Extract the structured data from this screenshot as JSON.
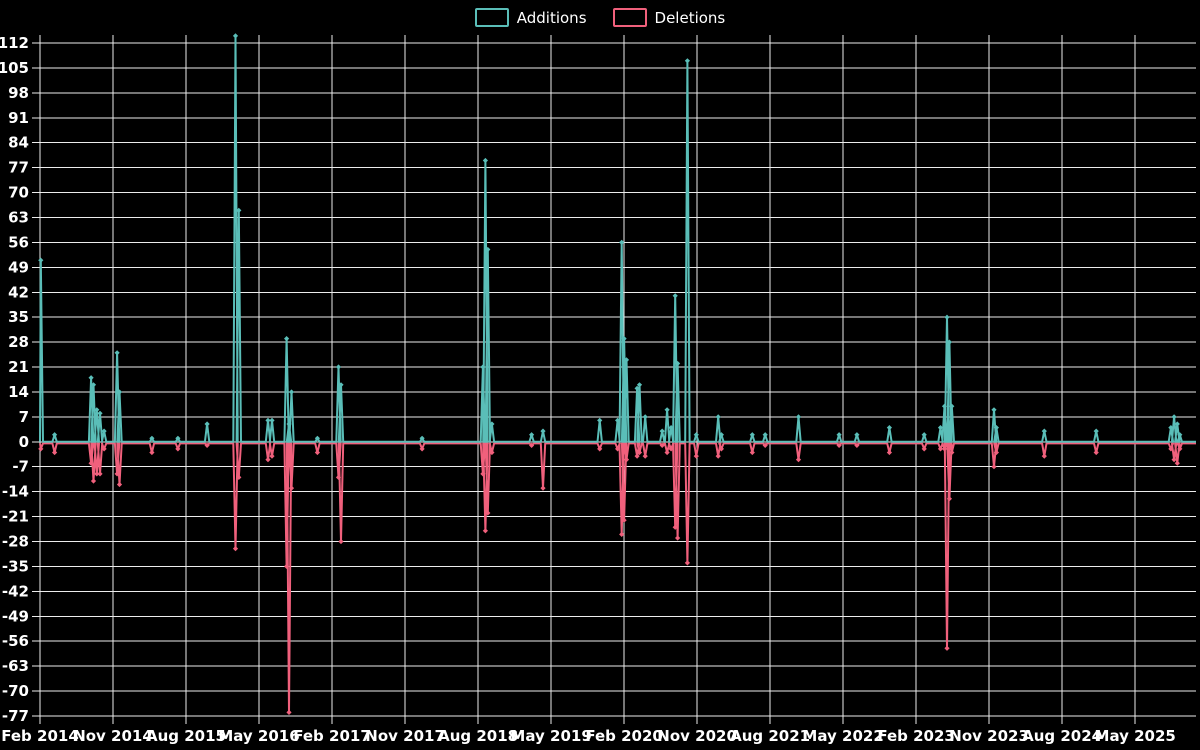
{
  "page": {
    "background": "#000000"
  },
  "legend": {
    "items": [
      {
        "label": "Additions",
        "color": "#5abeb8"
      },
      {
        "label": "Deletions",
        "color": "#f0607c"
      }
    ]
  },
  "chart_data": {
    "type": "line",
    "title": "",
    "xlabel": "",
    "ylabel": "",
    "grid": true,
    "legend_position": "top-center",
    "colors": {
      "background": "#000000",
      "grid": "#ececec",
      "text": "#ffffff",
      "additions": "#5abeb8",
      "deletions": "#f0607c"
    },
    "y_axis": {
      "ylim": [
        -77,
        112
      ],
      "tick_step": 7
    },
    "x_axis": {
      "xlim_months": [
        0,
        142.5
      ],
      "tick_labels": [
        "Feb 2014",
        "Nov 2014",
        "Aug 2015",
        "May 2016",
        "Feb 2017",
        "Nov 2017",
        "Aug 2018",
        "May 2019",
        "Feb 2020",
        "Nov 2020",
        "Aug 2021",
        "May 2022",
        "Feb 2023",
        "Nov 2023",
        "Aug 2024",
        "May 2025"
      ],
      "tick_month_offsets": [
        0,
        9,
        18,
        27,
        36,
        45,
        54,
        63,
        72,
        81,
        90,
        99,
        108,
        117,
        126,
        135
      ]
    },
    "series": [
      {
        "name": "Additions",
        "key": "a",
        "color": "#5abeb8"
      },
      {
        "name": "Deletions",
        "key": "d",
        "color": "#f0607c"
      }
    ],
    "points": [
      {
        "m": 0.1,
        "date": "Feb 2014",
        "a": 51,
        "d": -2
      },
      {
        "m": 1.8,
        "date": "Mar 2014",
        "a": 2,
        "d": -3
      },
      {
        "m": 6.3,
        "date": "Aug 2014",
        "a": 18,
        "d": -6
      },
      {
        "m": 6.6,
        "date": "Aug 2014",
        "a": 16,
        "d": -11
      },
      {
        "m": 7.0,
        "date": "Sep 2014",
        "a": 9,
        "d": -9
      },
      {
        "m": 7.4,
        "date": "Sep 2014",
        "a": 8,
        "d": -9
      },
      {
        "m": 7.9,
        "date": "Oct 2014",
        "a": 3,
        "d": -2
      },
      {
        "m": 9.5,
        "date": "Nov 2014",
        "a": 25,
        "d": -9
      },
      {
        "m": 9.8,
        "date": "Dec 2014",
        "a": 14,
        "d": -12
      },
      {
        "m": 13.8,
        "date": "Mar 2015",
        "a": 1,
        "d": -3
      },
      {
        "m": 17.0,
        "date": "Jul 2015",
        "a": 1,
        "d": -2
      },
      {
        "m": 20.6,
        "date": "Oct 2015",
        "a": 5,
        "d": -1
      },
      {
        "m": 24.1,
        "date": "Feb 2016",
        "a": 114,
        "d": -30
      },
      {
        "m": 24.5,
        "date": "Feb 2016",
        "a": 65,
        "d": -10
      },
      {
        "m": 28.1,
        "date": "Jun 2016",
        "a": 6,
        "d": -5
      },
      {
        "m": 28.6,
        "date": "Jun 2016",
        "a": 6,
        "d": -4
      },
      {
        "m": 30.4,
        "date": "Aug 2016",
        "a": 29,
        "d": -35
      },
      {
        "m": 30.7,
        "date": "Sep 2016",
        "a": 5,
        "d": -76
      },
      {
        "m": 31.0,
        "date": "Sep 2016",
        "a": 14,
        "d": -13
      },
      {
        "m": 34.2,
        "date": "Dec 2016",
        "a": 1,
        "d": -3
      },
      {
        "m": 36.8,
        "date": "Mar 2017",
        "a": 21,
        "d": -10
      },
      {
        "m": 37.1,
        "date": "Mar 2017",
        "a": 16,
        "d": -28
      },
      {
        "m": 47.1,
        "date": "Jan 2018",
        "a": 1,
        "d": -2
      },
      {
        "m": 54.6,
        "date": "Aug 2018",
        "a": 21,
        "d": -9
      },
      {
        "m": 54.9,
        "date": "Sep 2018",
        "a": 79,
        "d": -25
      },
      {
        "m": 55.2,
        "date": "Sep 2018",
        "a": 54,
        "d": -20
      },
      {
        "m": 55.7,
        "date": "Sep 2018",
        "a": 5,
        "d": -3
      },
      {
        "m": 60.6,
        "date": "Feb 2019",
        "a": 2,
        "d": -1
      },
      {
        "m": 62.0,
        "date": "Apr 2019",
        "a": 3,
        "d": -13
      },
      {
        "m": 69.0,
        "date": "Nov 2019",
        "a": 6,
        "d": -2
      },
      {
        "m": 71.2,
        "date": "Jan 2020",
        "a": 6,
        "d": -2
      },
      {
        "m": 71.7,
        "date": "Jan 2020",
        "a": 56,
        "d": -26
      },
      {
        "m": 72.0,
        "date": "Feb 2020",
        "a": 29,
        "d": -22
      },
      {
        "m": 72.3,
        "date": "Feb 2020",
        "a": 23,
        "d": -5
      },
      {
        "m": 73.6,
        "date": "Mar 2020",
        "a": 15,
        "d": -4
      },
      {
        "m": 73.9,
        "date": "Apr 2020",
        "a": 16,
        "d": -3
      },
      {
        "m": 74.6,
        "date": "Apr 2020",
        "a": 7,
        "d": -4
      },
      {
        "m": 76.7,
        "date": "Jun 2020",
        "a": 3,
        "d": -1
      },
      {
        "m": 77.3,
        "date": "Jul 2020",
        "a": 9,
        "d": -3
      },
      {
        "m": 77.8,
        "date": "Jul 2020",
        "a": 4,
        "d": -2
      },
      {
        "m": 78.3,
        "date": "Aug 2020",
        "a": 41,
        "d": -24
      },
      {
        "m": 78.6,
        "date": "Aug 2020",
        "a": 22,
        "d": -27
      },
      {
        "m": 79.8,
        "date": "Sep 2020",
        "a": 107,
        "d": -34
      },
      {
        "m": 80.9,
        "date": "Oct 2020",
        "a": 2,
        "d": -4
      },
      {
        "m": 83.6,
        "date": "Jan 2021",
        "a": 7,
        "d": -4
      },
      {
        "m": 84.0,
        "date": "Feb 2021",
        "a": 2,
        "d": -2
      },
      {
        "m": 87.8,
        "date": "May 2021",
        "a": 2,
        "d": -3
      },
      {
        "m": 89.4,
        "date": "Jul 2021",
        "a": 2,
        "d": -1
      },
      {
        "m": 93.5,
        "date": "Nov 2021",
        "a": 7,
        "d": -5
      },
      {
        "m": 98.5,
        "date": "Apr 2022",
        "a": 2,
        "d": -1
      },
      {
        "m": 100.7,
        "date": "Jun 2022",
        "a": 2,
        "d": -1
      },
      {
        "m": 104.7,
        "date": "Oct 2022",
        "a": 4,
        "d": -3
      },
      {
        "m": 109.0,
        "date": "Mar 2023",
        "a": 2,
        "d": -2
      },
      {
        "m": 111.0,
        "date": "May 2023",
        "a": 4,
        "d": -2
      },
      {
        "m": 111.5,
        "date": "May 2023",
        "a": 10,
        "d": -2
      },
      {
        "m": 111.8,
        "date": "Jun 2023",
        "a": 35,
        "d": -58
      },
      {
        "m": 112.1,
        "date": "Jun 2023",
        "a": 28,
        "d": -16
      },
      {
        "m": 112.4,
        "date": "Jun 2023",
        "a": 10,
        "d": -3
      },
      {
        "m": 117.6,
        "date": "Nov 2023",
        "a": 9,
        "d": -7
      },
      {
        "m": 117.9,
        "date": "Dec 2023",
        "a": 4,
        "d": -3
      },
      {
        "m": 123.8,
        "date": "Jun 2024",
        "a": 3,
        "d": -4
      },
      {
        "m": 130.2,
        "date": "Dec 2024",
        "a": 3,
        "d": -3
      },
      {
        "m": 139.4,
        "date": "Sep 2025",
        "a": 4,
        "d": -2
      },
      {
        "m": 139.8,
        "date": "Oct 2025",
        "a": 7,
        "d": -5
      },
      {
        "m": 140.2,
        "date": "Oct 2025",
        "a": 5,
        "d": -6
      },
      {
        "m": 140.5,
        "date": "Oct 2025",
        "a": 2,
        "d": -2
      }
    ]
  }
}
